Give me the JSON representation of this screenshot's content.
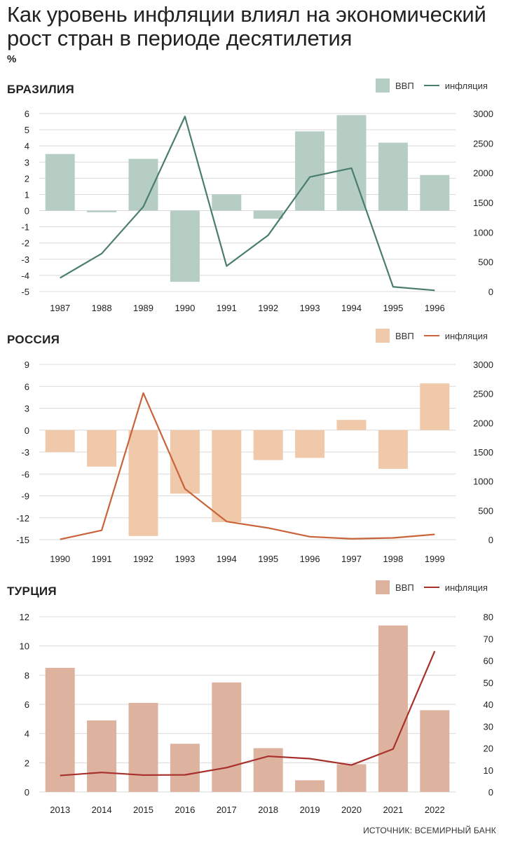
{
  "title": "Как уровень инфляции влиял на экономический рост стран в периоде десятилетия",
  "unit": "%",
  "source": "ИСТОЧНИК: ВСЕМИРНЫЙ БАНК",
  "legend": {
    "gdp": "ВВП",
    "inflation": "инфляция"
  },
  "chart_data": [
    {
      "type": "bar",
      "title": "БРАЗИЛИЯ",
      "categories": [
        "1987",
        "1988",
        "1989",
        "1990",
        "1991",
        "1992",
        "1993",
        "1994",
        "1995",
        "1996"
      ],
      "series": [
        {
          "name": "ВВП",
          "type": "bar",
          "axis": "left",
          "values": [
            3.5,
            -0.1,
            3.2,
            -4.4,
            1.0,
            -0.5,
            4.9,
            5.9,
            4.2,
            2.2
          ]
        },
        {
          "name": "инфляция",
          "type": "line",
          "axis": "right",
          "values": [
            230,
            640,
            1430,
            2950,
            430,
            950,
            1930,
            2080,
            80,
            20
          ]
        }
      ],
      "ylim_left": [
        -5,
        6
      ],
      "ylim_right": [
        0,
        3000
      ],
      "left_ticks": [
        6,
        5,
        4,
        3,
        2,
        1,
        0,
        -1,
        -2,
        -3,
        -4,
        -5
      ],
      "right_ticks": [
        3000,
        2500,
        2000,
        1500,
        1000,
        500,
        0
      ],
      "bar_color": "#b6cdc3",
      "line_color": "#4a7c70",
      "grid": true
    },
    {
      "type": "bar",
      "title": "РОССИЯ",
      "categories": [
        "1990",
        "1991",
        "1992",
        "1993",
        "1994",
        "1995",
        "1996",
        "1997",
        "1998",
        "1999"
      ],
      "series": [
        {
          "name": "ВВП",
          "type": "bar",
          "axis": "left",
          "values": [
            -3.0,
            -5.0,
            -14.5,
            -8.7,
            -12.6,
            -4.1,
            -3.8,
            1.4,
            -5.3,
            6.4
          ]
        },
        {
          "name": "инфляция",
          "type": "line",
          "axis": "right",
          "values": [
            5,
            160,
            2510,
            870,
            310,
            200,
            50,
            15,
            30,
            90
          ]
        }
      ],
      "ylim_left": [
        -15,
        9
      ],
      "ylim_right": [
        0,
        3000
      ],
      "left_ticks": [
        9,
        6,
        3,
        0,
        -3,
        -6,
        -9,
        -12,
        -15
      ],
      "right_ticks": [
        3000,
        2500,
        2000,
        1500,
        1000,
        500,
        0
      ],
      "bar_color": "#efc9a9",
      "line_color": "#c9633a",
      "grid": true
    },
    {
      "type": "bar",
      "title": "ТУРЦИЯ",
      "categories": [
        "2013",
        "2014",
        "2015",
        "2016",
        "2017",
        "2018",
        "2019",
        "2020",
        "2021",
        "2022"
      ],
      "series": [
        {
          "name": "ВВП",
          "type": "bar",
          "axis": "left",
          "values": [
            8.5,
            4.9,
            6.1,
            3.3,
            7.5,
            3.0,
            0.8,
            1.9,
            11.4,
            5.6
          ]
        },
        {
          "name": "инфляция",
          "type": "line",
          "axis": "right",
          "values": [
            7.5,
            8.9,
            7.7,
            7.8,
            11.1,
            16.3,
            15.2,
            12.3,
            19.6,
            64.3
          ]
        }
      ],
      "ylim_left": [
        0,
        12
      ],
      "ylim_right": [
        0,
        80
      ],
      "left_ticks": [
        12,
        10,
        8,
        6,
        4,
        2,
        0
      ],
      "right_ticks": [
        80,
        70,
        60,
        50,
        40,
        30,
        20,
        10,
        0
      ],
      "bar_color": "#ddb3a0",
      "line_color": "#a8302a",
      "grid": true
    }
  ]
}
